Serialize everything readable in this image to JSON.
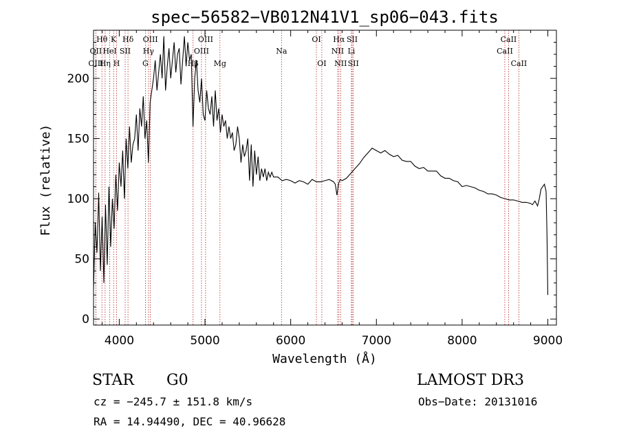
{
  "chart_data": {
    "type": "line",
    "title": "spec−56582−VB012N41V1_sp06−043.fits",
    "xlabel": "Wavelength (Å)",
    "ylabel": "Flux (relative)",
    "xlim": [
      3700,
      9100
    ],
    "ylim": [
      -5,
      240
    ],
    "x_ticks": [
      4000,
      5000,
      6000,
      7000,
      8000,
      9000
    ],
    "y_ticks": [
      0,
      50,
      100,
      150,
      200
    ],
    "series": [
      {
        "x": [
          3700,
          3720,
          3740,
          3760,
          3780,
          3800,
          3820,
          3840,
          3860,
          3880,
          3900,
          3920,
          3940,
          3960,
          3980,
          4000,
          4020,
          4040,
          4060,
          4080,
          4100,
          4120,
          4140,
          4160,
          4180,
          4200,
          4220,
          4240,
          4260,
          4280,
          4300,
          4320,
          4340,
          4360,
          4380,
          4400,
          4420,
          4440,
          4460,
          4480,
          4500,
          4520,
          4540,
          4560,
          4580,
          4600,
          4620,
          4640,
          4660,
          4680,
          4700,
          4720,
          4740,
          4760,
          4780,
          4800,
          4820,
          4840,
          4860,
          4880,
          4900,
          4920,
          4940,
          4960,
          4980,
          5000,
          5020,
          5040,
          5060,
          5080,
          5100,
          5120,
          5140,
          5160,
          5180,
          5200,
          5220,
          5240,
          5260,
          5280,
          5300,
          5320,
          5340,
          5360,
          5380,
          5400,
          5420,
          5440,
          5460,
          5480,
          5500,
          5520,
          5540,
          5560,
          5580,
          5600,
          5620,
          5640,
          5660,
          5680,
          5700,
          5720,
          5740,
          5760,
          5780,
          5800,
          5850,
          5900,
          5950,
          6000,
          6050,
          6100,
          6150,
          6200,
          6250,
          6300,
          6350,
          6400,
          6450,
          6500,
          6520,
          6540,
          6560,
          6580,
          6600,
          6650,
          6700,
          6750,
          6800,
          6850,
          6900,
          6950,
          7000,
          7050,
          7100,
          7150,
          7200,
          7250,
          7300,
          7350,
          7400,
          7450,
          7500,
          7550,
          7600,
          7650,
          7700,
          7750,
          7800,
          7850,
          7900,
          7950,
          8000,
          8050,
          8100,
          8150,
          8200,
          8250,
          8300,
          8350,
          8400,
          8450,
          8500,
          8550,
          8600,
          8650,
          8700,
          8750,
          8800,
          8820,
          8850,
          8880,
          8900,
          8920,
          8940,
          8960,
          8980,
          8990,
          9000
        ],
        "y": [
          25,
          80,
          55,
          105,
          40,
          85,
          30,
          95,
          45,
          110,
          60,
          100,
          75,
          120,
          90,
          130,
          110,
          140,
          100,
          150,
          125,
          160,
          130,
          145,
          150,
          170,
          140,
          175,
          160,
          185,
          150,
          165,
          130,
          180,
          190,
          200,
          215,
          190,
          205,
          220,
          200,
          235,
          190,
          210,
          225,
          200,
          215,
          230,
          205,
          220,
          225,
          195,
          215,
          235,
          210,
          230,
          215,
          220,
          160,
          200,
          215,
          190,
          180,
          200,
          170,
          165,
          190,
          175,
          170,
          185,
          160,
          190,
          165,
          175,
          155,
          170,
          160,
          165,
          150,
          160,
          150,
          155,
          140,
          145,
          160,
          150,
          130,
          145,
          135,
          140,
          150,
          115,
          145,
          110,
          140,
          120,
          135,
          115,
          125,
          118,
          125,
          115,
          122,
          118,
          122,
          118,
          118,
          115,
          116,
          115,
          113,
          115,
          114,
          112,
          116,
          114,
          114,
          115,
          116,
          114,
          112,
          103,
          113,
          116,
          115,
          117,
          121,
          125,
          129,
          134,
          138,
          142,
          140,
          138,
          140,
          137,
          135,
          136,
          132,
          131,
          131,
          127,
          125,
          126,
          123,
          123,
          123,
          119,
          117,
          117,
          115,
          114,
          110,
          111,
          110,
          109,
          107,
          106,
          104,
          104,
          103,
          101,
          100,
          99,
          99,
          98,
          97,
          97,
          96,
          95,
          98,
          94,
          100,
          108,
          110,
          112,
          106,
          70,
          20
        ]
      }
    ],
    "line_markers": [
      {
        "name": "Hθ",
        "wave": 3798,
        "row": 1
      },
      {
        "name": "OII",
        "wave": 3727,
        "row": 2
      },
      {
        "name": "OIII",
        "wave": 3727,
        "row": 3
      },
      {
        "name": "K",
        "wave": 3934,
        "row": 1
      },
      {
        "name": "HeI",
        "wave": 3889,
        "row": 2
      },
      {
        "name": "Hη",
        "wave": 3835,
        "row": 3
      },
      {
        "name": "H",
        "wave": 3969,
        "row": 3
      },
      {
        "name": "Hδ",
        "wave": 4102,
        "row": 1
      },
      {
        "name": "SII",
        "wave": 4069,
        "row": 2
      },
      {
        "name": "OIII",
        "wave": 4363,
        "row": 1
      },
      {
        "name": "Hγ",
        "wave": 4341,
        "row": 2
      },
      {
        "name": "G",
        "wave": 4305,
        "row": 3
      },
      {
        "name": "OIII",
        "wave": 5007,
        "row": 1
      },
      {
        "name": "OIII",
        "wave": 4959,
        "row": 2
      },
      {
        "name": "Hβ",
        "wave": 4861,
        "row": 3
      },
      {
        "name": "Mg",
        "wave": 5175,
        "row": 3
      },
      {
        "name": "Na",
        "wave": 5893,
        "row": 2
      },
      {
        "name": "OI",
        "wave": 6300,
        "row": 1
      },
      {
        "name": "OI",
        "wave": 6363,
        "row": 3
      },
      {
        "name": "Hα",
        "wave": 6563,
        "row": 1
      },
      {
        "name": "NII",
        "wave": 6548,
        "row": 2
      },
      {
        "name": "NII",
        "wave": 6583,
        "row": 3
      },
      {
        "name": "SII",
        "wave": 6717,
        "row": 1
      },
      {
        "name": "Li",
        "wave": 6708,
        "row": 2
      },
      {
        "name": "SII",
        "wave": 6731,
        "row": 3
      },
      {
        "name": "CaII",
        "wave": 8542,
        "row": 1
      },
      {
        "name": "CaII",
        "wave": 8498,
        "row": 2
      },
      {
        "name": "CaII",
        "wave": 8662,
        "row": 3
      }
    ]
  },
  "info": {
    "object_class": "STAR",
    "subclass": "G0",
    "survey": "LAMOST DR3",
    "cz": "cz = −245.7 ± 151.8 km/s",
    "obs_date": "Obs−Date: 20131016",
    "coords": "RA =  14.94490, DEC =  40.96628"
  },
  "colors": {
    "spectrum": "#000000",
    "line_markers": "#b22222",
    "axes": "#000000"
  }
}
